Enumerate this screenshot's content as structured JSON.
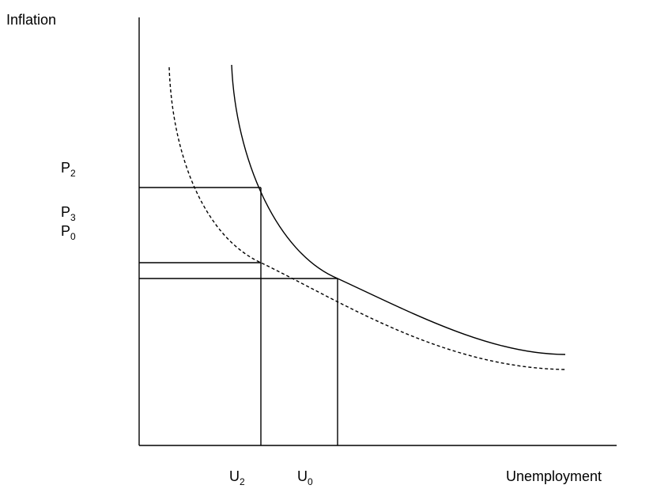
{
  "axes": {
    "y_label": "Inflation",
    "x_label": "Unemployment"
  },
  "y_labels": [
    {
      "base": "P",
      "sub": "2"
    },
    {
      "base": "P",
      "sub": "3"
    },
    {
      "base": "P",
      "sub": "0"
    }
  ],
  "x_labels": [
    {
      "base": "U",
      "sub": "2"
    },
    {
      "base": "U",
      "sub": "0"
    }
  ]
}
